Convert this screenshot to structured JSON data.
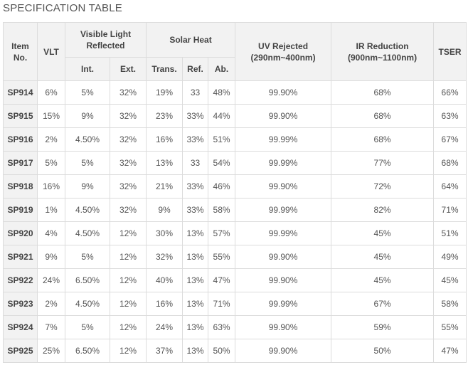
{
  "title": "SPECIFICATION TABLE",
  "headers": {
    "item_no": "Item No.",
    "vlt": "VLT",
    "visible_light_reflected": "Visible Light Reflected",
    "int": "Int.",
    "ext": "Ext.",
    "solar_heat": "Solar Heat",
    "trans": "Trans.",
    "ref": "Ref.",
    "ab": "Ab.",
    "uv_rejected_label": "UV Rejected",
    "uv_rejected_range": "(290nm~400nm)",
    "ir_reduction_label": "IR Reduction",
    "ir_reduction_range": "(900nm~1100nm)",
    "tser": "TSER"
  },
  "rows": [
    [
      "SP914",
      "6%",
      "5%",
      "32%",
      "19%",
      "33",
      "48%",
      "99.90%",
      "68%",
      "66%"
    ],
    [
      "SP915",
      "15%",
      "9%",
      "32%",
      "23%",
      "33%",
      "44%",
      "99.90%",
      "68%",
      "63%"
    ],
    [
      "SP916",
      "2%",
      "4.50%",
      "32%",
      "16%",
      "33%",
      "51%",
      "99.99%",
      "68%",
      "67%"
    ],
    [
      "SP917",
      "5%",
      "5%",
      "32%",
      "13%",
      "33",
      "54%",
      "99.99%",
      "77%",
      "68%"
    ],
    [
      "SP918",
      "16%",
      "9%",
      "32%",
      "21%",
      "33%",
      "46%",
      "99.90%",
      "72%",
      "64%"
    ],
    [
      "SP919",
      "1%",
      "4.50%",
      "32%",
      "9%",
      "33%",
      "58%",
      "99.99%",
      "82%",
      "71%"
    ],
    [
      "SP920",
      "4%",
      "4.50%",
      "12%",
      "30%",
      "13%",
      "57%",
      "99.99%",
      "45%",
      "51%"
    ],
    [
      "SP921",
      "9%",
      "5%",
      "12%",
      "32%",
      "13%",
      "55%",
      "99.90%",
      "45%",
      "49%"
    ],
    [
      "SP922",
      "24%",
      "6.50%",
      "12%",
      "40%",
      "13%",
      "47%",
      "99.90%",
      "45%",
      "45%"
    ],
    [
      "SP923",
      "2%",
      "4.50%",
      "12%",
      "16%",
      "13%",
      "71%",
      "99.99%",
      "67%",
      "58%"
    ],
    [
      "SP924",
      "7%",
      "5%",
      "12%",
      "24%",
      "13%",
      "63%",
      "99.90%",
      "59%",
      "55%"
    ],
    [
      "SP925",
      "25%",
      "6.50%",
      "12%",
      "37%",
      "13%",
      "50%",
      "99.90%",
      "50%",
      "47%"
    ]
  ]
}
